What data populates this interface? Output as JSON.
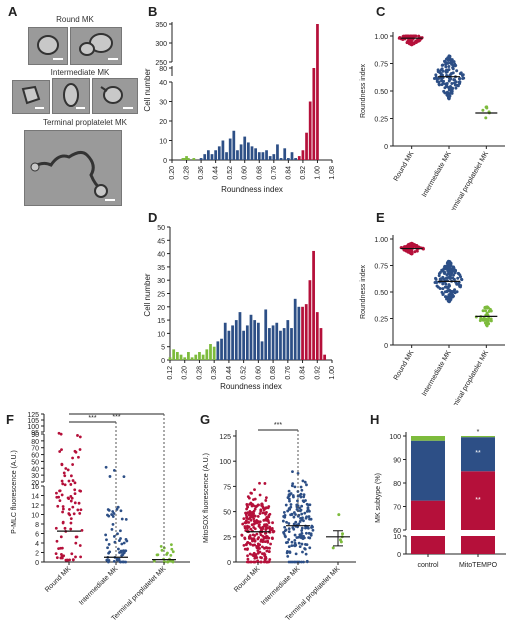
{
  "figure": {
    "panel_labels": [
      "A",
      "B",
      "C",
      "D",
      "E",
      "F",
      "G",
      "H"
    ],
    "micrographs": {
      "round_label": "Round MK",
      "intermediate_label": "Intermediate MK",
      "terminal_label": "Terminal proplatelet MK"
    }
  },
  "colors": {
    "round": "#b5103a",
    "intermediate": "#2d4f86",
    "terminal": "#7dbb3c",
    "axis": "#222222"
  },
  "chart_data": [
    {
      "id": "B",
      "type": "bar",
      "xlabel": "Roundness index",
      "ylabel": "Cell number",
      "x_ticks": [
        "0.20",
        "0.28",
        "0.36",
        "0.44",
        "0.52",
        "0.60",
        "0.68",
        "0.76",
        "0.84",
        "0.92",
        "1.00",
        "1.08"
      ],
      "y_ticks": [
        "0",
        "10",
        "20",
        "30",
        "40",
        "80",
        "250",
        "300",
        "350"
      ],
      "axis_break": true,
      "series": [
        {
          "class": "terminal",
          "x": [
            0.26,
            0.27,
            0.28,
            0.29,
            0.3,
            0.32
          ],
          "values": [
            1,
            1,
            2,
            1,
            0,
            1
          ]
        },
        {
          "class": "intermediate",
          "x": [
            0.36,
            0.38,
            0.4,
            0.42,
            0.44,
            0.46,
            0.48,
            0.5,
            0.52,
            0.54,
            0.56,
            0.58,
            0.6,
            0.62,
            0.64,
            0.66,
            0.68,
            0.7,
            0.72,
            0.74,
            0.76,
            0.78,
            0.8,
            0.82,
            0.84,
            0.86,
            0.88
          ],
          "values": [
            1,
            3,
            5,
            3,
            5,
            7,
            10,
            4,
            11,
            15,
            5,
            8,
            12,
            9,
            7,
            6,
            4,
            4,
            5,
            2,
            3,
            8,
            1,
            6,
            1,
            4,
            1
          ]
        },
        {
          "class": "round",
          "x": [
            0.9,
            0.92,
            0.94,
            0.96,
            0.98,
            1.0
          ],
          "values": [
            2,
            5,
            14,
            30,
            80,
            350
          ]
        }
      ]
    },
    {
      "id": "C",
      "type": "scatter",
      "ylabel": "Roundness index",
      "ylim": [
        0,
        1.0
      ],
      "y_ticks": [
        "0",
        "0.25",
        "0.50",
        "0.75",
        "1.00"
      ],
      "categories": [
        "Round MK",
        "Intermediate MK",
        "Terminal proplatelet MK"
      ],
      "means": [
        0.98,
        0.63,
        0.3
      ]
    },
    {
      "id": "D",
      "type": "bar",
      "xlabel": "Roundness index",
      "ylabel": "Cell number",
      "x_ticks": [
        "0.12",
        "0.20",
        "0.28",
        "0.36",
        "0.44",
        "0.52",
        "0.60",
        "0.68",
        "0.76",
        "0.84",
        "0.92",
        "1.00"
      ],
      "y_ticks": [
        "0",
        "5",
        "10",
        "15",
        "20",
        "25",
        "30",
        "35",
        "40",
        "45",
        "50"
      ],
      "ylim": [
        0,
        50
      ],
      "series": [
        {
          "class": "terminal",
          "x": [
            0.12,
            0.14,
            0.16,
            0.18,
            0.2,
            0.22,
            0.24,
            0.26,
            0.28,
            0.3,
            0.32,
            0.34,
            0.36
          ],
          "values": [
            1,
            4,
            3,
            2,
            1,
            3,
            1,
            2,
            3,
            2,
            4,
            6,
            5
          ]
        },
        {
          "class": "intermediate",
          "x": [
            0.38,
            0.4,
            0.42,
            0.44,
            0.46,
            0.48,
            0.5,
            0.52,
            0.54,
            0.56,
            0.58,
            0.6,
            0.62,
            0.64,
            0.66,
            0.68,
            0.7,
            0.72,
            0.74,
            0.76,
            0.78,
            0.8,
            0.82
          ],
          "values": [
            7,
            8,
            14,
            11,
            13,
            15,
            18,
            11,
            13,
            17,
            15,
            14,
            7,
            19,
            12,
            13,
            14,
            11,
            12,
            15,
            12,
            23,
            20
          ]
        },
        {
          "class": "round",
          "x": [
            0.84,
            0.86,
            0.88,
            0.9,
            0.92,
            0.94,
            0.96
          ],
          "values": [
            20,
            21,
            30,
            41,
            18,
            12,
            2
          ]
        }
      ]
    },
    {
      "id": "E",
      "type": "scatter",
      "ylabel": "Roundness index",
      "ylim": [
        0,
        1.0
      ],
      "y_ticks": [
        "0",
        "0.25",
        "0.50",
        "0.75",
        "1.00"
      ],
      "categories": [
        "Round MK",
        "Intermediate MK",
        "Terminal proplatelet MK"
      ],
      "means": [
        0.91,
        0.6,
        0.27
      ]
    },
    {
      "id": "F",
      "type": "scatter",
      "ylabel": "P-MLC fluorescence (A.U.)",
      "y_ticks": [
        "0",
        "2",
        "4",
        "6",
        "8",
        "10",
        "12",
        "14",
        "16",
        "20",
        "30",
        "40",
        "50",
        "60",
        "70",
        "80",
        "90",
        "95",
        "100",
        "105",
        "125"
      ],
      "categories": [
        "Round MK",
        "Intermediate MK",
        "Terminal proplatelet MK"
      ],
      "means": [
        6.5,
        1.0,
        0.5
      ],
      "annotations": [
        "***",
        "***"
      ]
    },
    {
      "id": "G",
      "type": "scatter",
      "ylabel": "MitoSOX fluorescence (A.U.)",
      "ylim": [
        0,
        125
      ],
      "y_ticks": [
        "0",
        "25",
        "50",
        "75",
        "100",
        "125"
      ],
      "categories": [
        "Round MK",
        "Intermediate MK",
        "Terminal proplatelet MK"
      ],
      "means": [
        30,
        36,
        25
      ],
      "annotations": [
        "***"
      ]
    },
    {
      "id": "H",
      "type": "bar",
      "ylabel": "MK subtype (%)",
      "y_ticks": [
        "0",
        "10",
        "60",
        "70",
        "80",
        "90",
        "100"
      ],
      "categories": [
        "control",
        "MitoTEMPO"
      ],
      "series": [
        {
          "class": "round",
          "values": [
            72.5,
            85
          ]
        },
        {
          "class": "intermediate",
          "values": [
            25.5,
            14.5
          ]
        },
        {
          "class": "terminal",
          "values": [
            2,
            0.5
          ]
        }
      ],
      "annotations": [
        "*",
        "**",
        "**"
      ]
    }
  ]
}
